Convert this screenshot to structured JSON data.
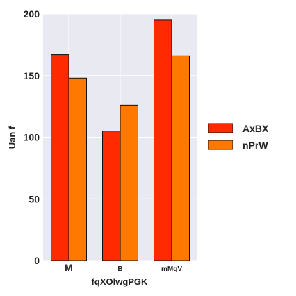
{
  "chart_data": {
    "type": "bar",
    "title": "",
    "xlabel": "fqXOlwgPGK",
    "ylabel": "Uan f",
    "categories": [
      "M",
      "B",
      "mMqV"
    ],
    "series": [
      {
        "name": "AxBX",
        "color": "#ff2a00",
        "values": [
          167,
          105,
          195
        ]
      },
      {
        "name": "nPrW",
        "color": "#ff7800",
        "values": [
          148,
          126,
          166
        ]
      }
    ],
    "ylim": [
      0,
      200
    ],
    "yticks": [
      0,
      50,
      100,
      150,
      200
    ],
    "grid": true,
    "legend_position": "right"
  },
  "colors": {
    "plot_background": "#e9e9f2",
    "grid": "#ffffff"
  }
}
